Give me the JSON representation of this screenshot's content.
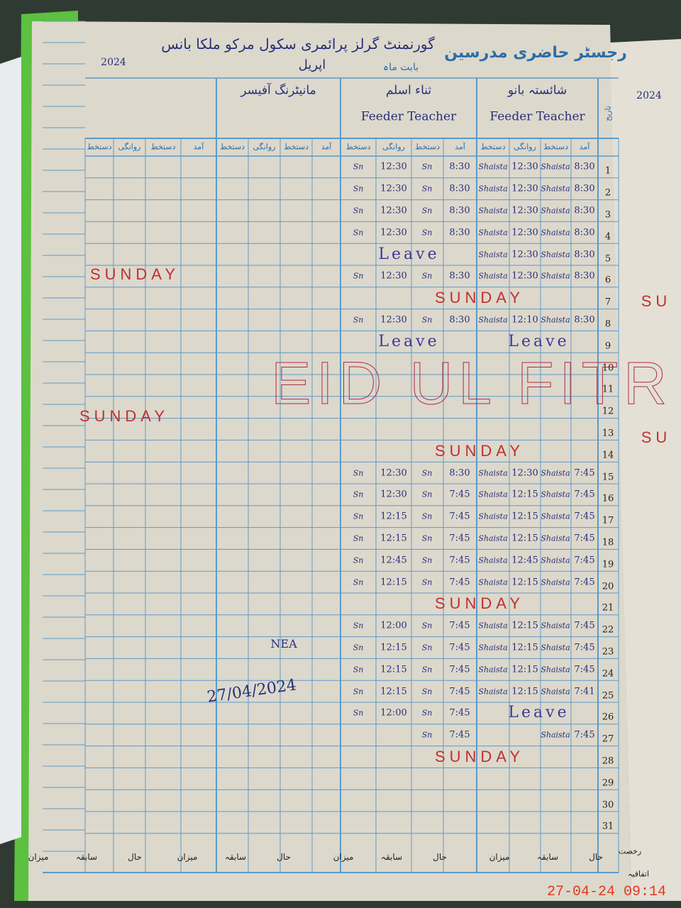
{
  "header": {
    "title": "رجسٹر حاضری مدرسین",
    "school": "گورنمنٹ گرلز پرائمری سکول مرکو ملکا بانس",
    "month_label": "بابت ماہ",
    "month": "اپریل",
    "year": "2024"
  },
  "teachers": [
    {
      "name": "شائستہ بانو",
      "role": "Feeder Teacher"
    },
    {
      "name": "ثناء اسلم",
      "role": "Feeder Teacher"
    },
    {
      "name": "مانیٹرنگ آفیسر"
    }
  ],
  "date_header": "تاریخ",
  "column_headers": [
    "آمد",
    "دستخط",
    "روانگی",
    "دستخط"
  ],
  "rows": [
    {
      "day": "1",
      "t1": [
        "8:30",
        "Shaista",
        "12:30",
        "Shaista"
      ],
      "t2": [
        "8:30",
        "Sn",
        "12:30",
        "Sn"
      ]
    },
    {
      "day": "2",
      "t1": [
        "8:30",
        "Shaista",
        "12:30",
        "Shaista"
      ],
      "t2": [
        "8:30",
        "Sn",
        "12:30",
        "Sn"
      ]
    },
    {
      "day": "3",
      "t1": [
        "8:30",
        "Shaista",
        "12:30",
        "Shaista"
      ],
      "t2": [
        "8:30",
        "Sn",
        "12:30",
        "Sn"
      ]
    },
    {
      "day": "4",
      "t1": [
        "8:30",
        "Shaista",
        "12:30",
        "Shaista"
      ],
      "t2": [
        "8:30",
        "Sn",
        "12:30",
        "Sn"
      ]
    },
    {
      "day": "5",
      "t1": [
        "8:30",
        "Shaista",
        "12:30",
        "Shaista"
      ],
      "t2": "Leave"
    },
    {
      "day": "6",
      "t1": [
        "8:30",
        "Shaista",
        "12:30",
        "Shaista"
      ],
      "t2": [
        "8:30",
        "Sn",
        "12:30",
        "Sn"
      ]
    },
    {
      "day": "7",
      "note": "SUNDAY"
    },
    {
      "day": "8",
      "t1": [
        "8:30",
        "Shaista",
        "12:10",
        "Shaista"
      ],
      "t2": [
        "8:30",
        "Sn",
        "12:30",
        "Sn"
      ]
    },
    {
      "day": "9",
      "t1": "Leave",
      "t2": "Leave"
    },
    {
      "day": "10"
    },
    {
      "day": "11"
    },
    {
      "day": "12"
    },
    {
      "day": "13"
    },
    {
      "day": "14",
      "note": "SUNDAY"
    },
    {
      "day": "15",
      "t1": [
        "7:45",
        "Shaista",
        "12:30",
        "Shaista"
      ],
      "t2": [
        "8:30",
        "Sn",
        "12:30",
        "Sn"
      ]
    },
    {
      "day": "16",
      "t1": [
        "7:45",
        "Shaista",
        "12:15",
        "Shaista"
      ],
      "t2": [
        "7:45",
        "Sn",
        "12:30",
        "Sn"
      ]
    },
    {
      "day": "17",
      "t1": [
        "7:45",
        "Shaista",
        "12:15",
        "Shaista"
      ],
      "t2": [
        "7:45",
        "Sn",
        "12:15",
        "Sn"
      ]
    },
    {
      "day": "18",
      "t1": [
        "7:45",
        "Shaista",
        "12:15",
        "Shaista"
      ],
      "t2": [
        "7:45",
        "Sn",
        "12:15",
        "Sn"
      ]
    },
    {
      "day": "19",
      "t1": [
        "7:45",
        "Shaista",
        "12:45",
        "Shaista"
      ],
      "t2": [
        "7:45",
        "Sn",
        "12:45",
        "Sn"
      ]
    },
    {
      "day": "20",
      "t1": [
        "7:45",
        "Shaista",
        "12:15",
        "Shaista"
      ],
      "t2": [
        "7:45",
        "Sn",
        "12:15",
        "Sn"
      ]
    },
    {
      "day": "21",
      "note": "SUNDAY"
    },
    {
      "day": "22",
      "t1": [
        "7:45",
        "Shaista",
        "12:15",
        "Shaista"
      ],
      "t2": [
        "7:45",
        "Sn",
        "12:00",
        "Sn"
      ]
    },
    {
      "day": "23",
      "t1": [
        "7:45",
        "Shaista",
        "12:15",
        "Shaista"
      ],
      "t2": [
        "7:45",
        "Sn",
        "12:15",
        "Sn"
      ]
    },
    {
      "day": "24",
      "t1": [
        "7:45",
        "Shaista",
        "12:15",
        "Shaista"
      ],
      "t2": [
        "7:45",
        "Sn",
        "12:15",
        "Sn"
      ]
    },
    {
      "day": "25",
      "t1": [
        "7:41",
        "Shaista",
        "12:15",
        "Shaista"
      ],
      "t2": [
        "7:45",
        "Sn",
        "12:15",
        "Sn"
      ]
    },
    {
      "day": "26",
      "t1": "Leave",
      "t2": [
        "7:45",
        "Sn",
        "12:00",
        "Sn"
      ]
    },
    {
      "day": "27",
      "t1": [
        "7:45",
        "Shaista"
      ],
      "t2": [
        "7:45",
        "Sn"
      ]
    },
    {
      "day": "28",
      "note": "SUNDAY"
    },
    {
      "day": "29"
    },
    {
      "day": "30"
    },
    {
      "day": "31"
    }
  ],
  "footer": {
    "leave": "رخصت",
    "groups": [
      "حال",
      "سابقہ",
      "میزان"
    ],
    "bottom": "اتفاقیہ"
  },
  "annotations": {
    "eid": "EID UL FITR",
    "left_sunday_1": "SUNDAY",
    "left_sunday_2": "SUNDAY",
    "signature": "NEA",
    "sign_date": "27/04/2024",
    "timestamp": "27-04-24 09:14",
    "right_year": "2024",
    "right_sunday_1": "SU",
    "right_sunday_2": "SU"
  }
}
